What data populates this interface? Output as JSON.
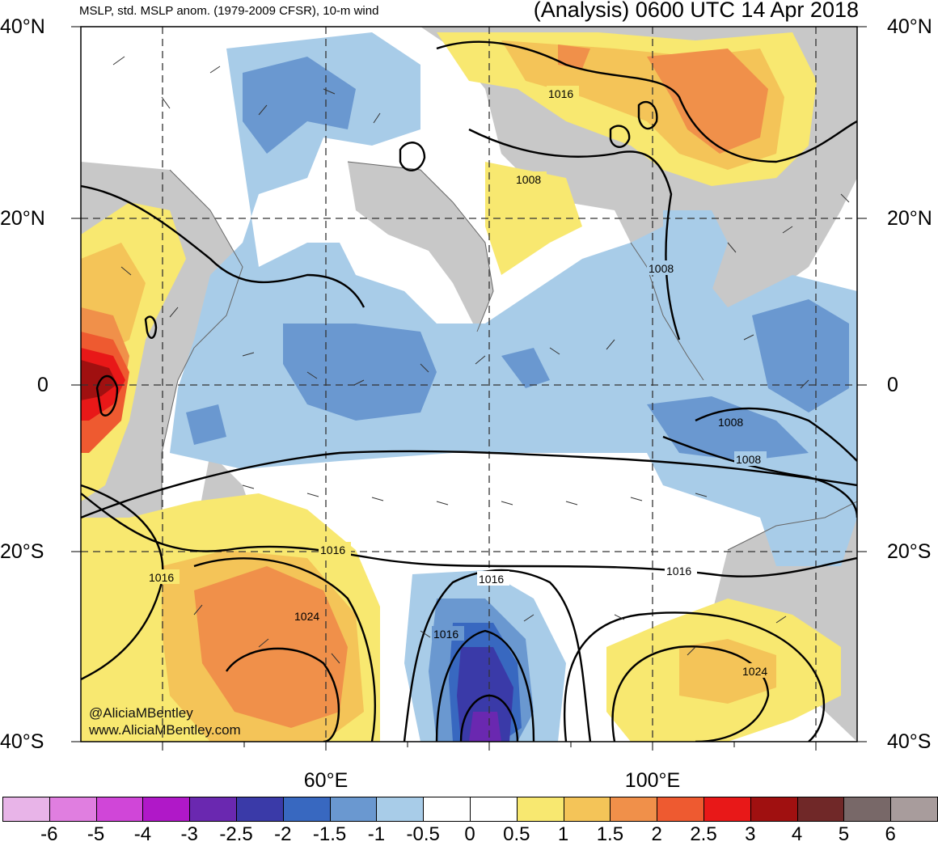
{
  "header": {
    "title_left": "MSLP, std. MSLP anom. (1979-2009 CFSR), 10-m wind",
    "title_right": "(Analysis) 0600 UTC 14 Apr 2018"
  },
  "map": {
    "lat_labels_left": [
      "40°N",
      "20°N",
      "0",
      "20°S",
      "40°S"
    ],
    "lat_labels_right": [
      "40°N",
      "20°N",
      "0",
      "20°S",
      "40°S"
    ],
    "lon_labels": [
      "60°E",
      "100°E"
    ],
    "isobar_labels": [
      "1016",
      "1008",
      "1008",
      "1008",
      "1008",
      "1016",
      "1016",
      "1016",
      "1016",
      "1024",
      "1016",
      "1024"
    ],
    "credit": [
      "@AliciaMBentley",
      "www.AliciaMBentley.com"
    ]
  },
  "legend": {
    "colors": [
      "#e8b4e8",
      "#e07ee0",
      "#d046d8",
      "#b018c8",
      "#6a28b0",
      "#3a3aa8",
      "#3868c0",
      "#6a98d0",
      "#a8cce8",
      "#ffffff",
      "#ffffff",
      "#f8e870",
      "#f4c458",
      "#f0904a",
      "#ee5a30",
      "#e81818",
      "#a01010",
      "#702828",
      "#786868",
      "#a89c9c"
    ],
    "labels": [
      "-6",
      "-5",
      "-4",
      "-3",
      "-2.5",
      "-2",
      "-1.5",
      "-1",
      "-0.5",
      "0",
      "0.5",
      "1",
      "1.5",
      "2",
      "2.5",
      "3",
      "4",
      "5",
      "6"
    ]
  }
}
